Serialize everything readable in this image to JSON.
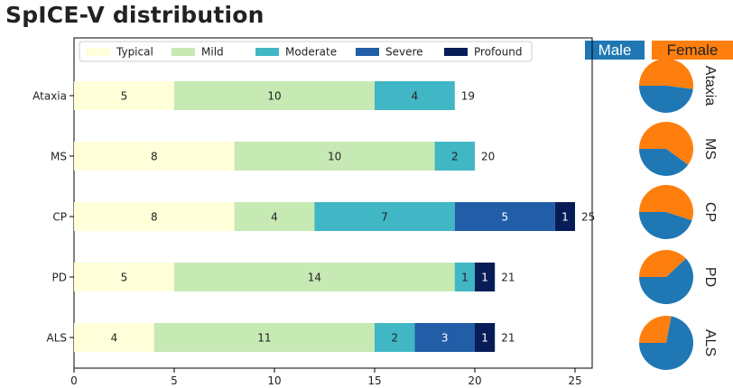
{
  "title": "SpICE-V distribution",
  "gender_legend": {
    "male_label": "Male",
    "male_color": "#1f77b4",
    "female_label": "Female",
    "female_color": "#ff7f0e"
  },
  "chart_data": [
    {
      "type": "bar",
      "orientation": "horizontal-stacked",
      "categories": [
        "Ataxia",
        "MS",
        "CP",
        "PD",
        "ALS"
      ],
      "series": [
        {
          "name": "Typical",
          "color": "#ffffd9",
          "values": [
            5,
            8,
            8,
            5,
            4
          ]
        },
        {
          "name": "Mild",
          "color": "#c7e9b4",
          "values": [
            10,
            10,
            4,
            14,
            11
          ]
        },
        {
          "name": "Moderate",
          "color": "#41b6c4",
          "values": [
            4,
            2,
            7,
            1,
            2
          ]
        },
        {
          "name": "Severe",
          "color": "#225ea8",
          "values": [
            0,
            0,
            5,
            0,
            3
          ]
        },
        {
          "name": "Profound",
          "color": "#081d58",
          "values": [
            0,
            0,
            1,
            1,
            1
          ]
        }
      ],
      "totals": [
        19,
        20,
        25,
        21,
        21
      ],
      "xlim": [
        0,
        26
      ],
      "xticks": [
        0,
        5,
        10,
        15,
        20,
        25
      ],
      "legend": "top",
      "grid": false
    },
    {
      "type": "pie",
      "categories": [
        "Ataxia",
        "MS",
        "CP",
        "PD",
        "ALS"
      ],
      "series": [
        {
          "name": "Male",
          "values": [
            0.48,
            0.4,
            0.45,
            0.62,
            0.72
          ]
        },
        {
          "name": "Female",
          "values": [
            0.52,
            0.6,
            0.55,
            0.38,
            0.28
          ]
        }
      ]
    }
  ]
}
